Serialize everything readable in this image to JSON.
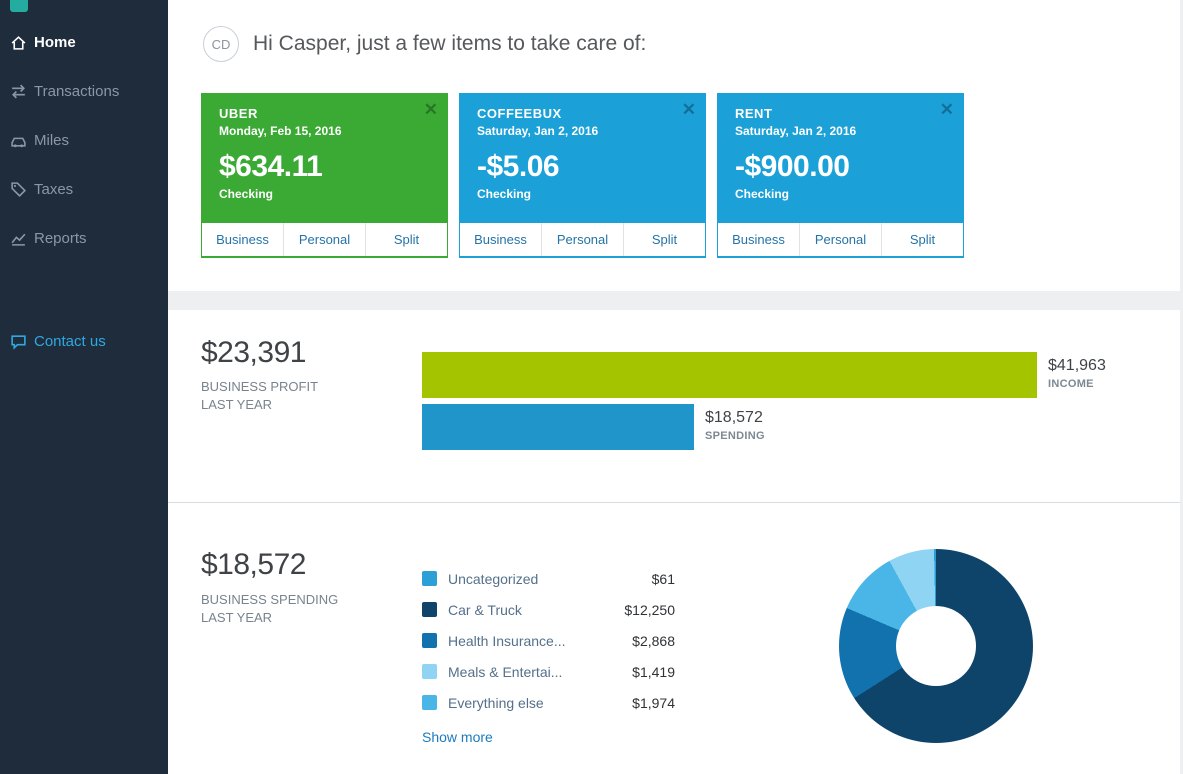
{
  "sidebar": {
    "items": [
      {
        "label": "Home",
        "active": true
      },
      {
        "label": "Transactions",
        "active": false
      },
      {
        "label": "Miles",
        "active": false
      },
      {
        "label": "Taxes",
        "active": false
      },
      {
        "label": "Reports",
        "active": false
      }
    ],
    "contact_label": "Contact us"
  },
  "header": {
    "avatar_initials": "CD",
    "greeting": "Hi Casper, just a few items to take care of:"
  },
  "cards": [
    {
      "title": "UBER",
      "date": "Monday, Feb 15, 2016",
      "amount": "$634.11",
      "account": "Checking",
      "accent": "#3aaa35",
      "actions": [
        "Business",
        "Personal",
        "Split"
      ]
    },
    {
      "title": "COFFEEBUX",
      "date": "Saturday, Jan 2, 2016",
      "amount": "-$5.06",
      "account": "Checking",
      "accent": "#1ba0d8",
      "actions": [
        "Business",
        "Personal",
        "Split"
      ]
    },
    {
      "title": "RENT",
      "date": "Saturday, Jan 2, 2016",
      "amount": "-$900.00",
      "account": "Checking",
      "accent": "#1ba0d8",
      "actions": [
        "Business",
        "Personal",
        "Split"
      ]
    }
  ],
  "profit_section": {
    "total": "$23,391",
    "label_line1": "BUSINESS PROFIT",
    "label_line2": "LAST YEAR"
  },
  "spending_section": {
    "total": "$18,572",
    "label_line1": "BUSINESS SPENDING",
    "label_line2": "LAST YEAR",
    "show_more": "Show more"
  },
  "chart_data": [
    {
      "type": "bar",
      "orientation": "horizontal",
      "title": "Business profit last year",
      "xlim": [
        0,
        41963
      ],
      "series": [
        {
          "name": "INCOME",
          "value": 41963,
          "display": "$41,963",
          "color": "#a4c400"
        },
        {
          "name": "SPENDING",
          "value": 18572,
          "display": "$18,572",
          "color": "#2095c9"
        }
      ]
    },
    {
      "type": "pie",
      "title": "Business spending last year",
      "total_display": "$18,572",
      "donut_hole": true,
      "segments": [
        {
          "label": "Uncategorized",
          "value": 61,
          "display": "$61",
          "color": "#2b9fd6"
        },
        {
          "label": "Car & Truck",
          "value": 12250,
          "display": "$12,250",
          "color": "#0e4469"
        },
        {
          "label": "Health Insurance...",
          "value": 2868,
          "display": "$2,868",
          "color": "#1172ae"
        },
        {
          "label": "Meals & Entertai...",
          "value": 1419,
          "display": "$1,419",
          "color": "#8fd4f2"
        },
        {
          "label": "Everything else",
          "value": 1974,
          "display": "$1,974",
          "color": "#4ab6e8"
        }
      ],
      "draw_order": [
        1,
        2,
        4,
        3,
        0
      ]
    }
  ]
}
